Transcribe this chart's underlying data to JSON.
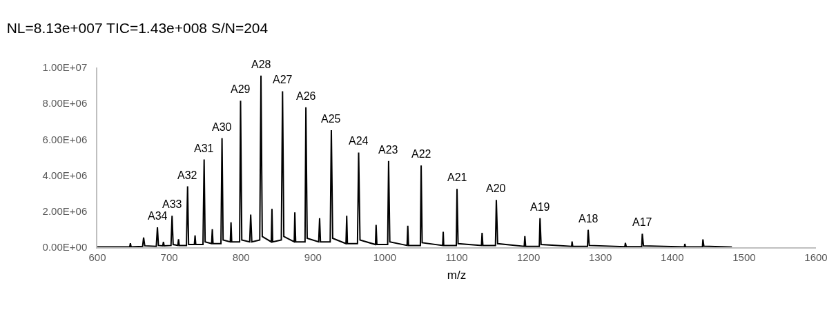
{
  "chart_data": {
    "type": "line",
    "title": "NL=8.13e+007 TIC=1.43e+008 S/N=204",
    "xlabel": "m/z",
    "xlim": [
      600,
      1600
    ],
    "xticks": [
      600,
      700,
      800,
      900,
      1000,
      1100,
      1200,
      1300,
      1400,
      1500,
      1600
    ],
    "ylim": [
      0,
      10000000
    ],
    "yticks": [
      {
        "value": 0,
        "label": "0.00E+00"
      },
      {
        "value": 2000000,
        "label": "2.00E+06"
      },
      {
        "value": 4000000,
        "label": "4.00E+06"
      },
      {
        "value": 6000000,
        "label": "6.00E+06"
      },
      {
        "value": 8000000,
        "label": "8.00E+06"
      },
      {
        "value": 10000000,
        "label": "1.00E+07"
      }
    ],
    "marker": "none",
    "line_style": "solid",
    "series": [
      {
        "color": "#000000",
        "x": [
          600,
          645,
          646,
          647,
          663,
          664.4,
          666,
          682,
          683.6,
          685,
          691,
          692,
          693,
          702.5,
          704,
          705.5,
          712,
          713,
          714,
          724,
          725.6,
          727,
          735,
          736,
          737,
          747,
          748.6,
          750,
          759,
          760,
          761,
          772,
          773.5,
          775,
          785,
          786,
          787,
          798,
          799.3,
          801,
          812,
          813.4,
          815,
          826,
          827.7,
          829.5,
          842,
          843,
          844,
          856,
          857.7,
          859.5,
          874,
          874.8,
          876,
          889,
          890.2,
          892,
          908,
          909.3,
          910.5,
          924,
          925.6,
          927.5,
          946,
          947,
          948,
          962,
          963.6,
          965.5,
          987,
          987.9,
          989,
          1004,
          1005.3,
          1007,
          1031,
          1032,
          1033,
          1049.5,
          1050.6,
          1052,
          1080.5,
          1081.3,
          1082,
          1099.5,
          1100.5,
          1102,
          1134.5,
          1135.4,
          1136.5,
          1154,
          1155.2,
          1157,
          1194,
          1194.9,
          1196,
          1215,
          1216,
          1217.5,
          1260,
          1260.6,
          1261.5,
          1282,
          1283,
          1284.5,
          1334,
          1334.8,
          1336,
          1357.5,
          1358.3,
          1360,
          1417,
          1417.5,
          1418.5,
          1442,
          1442.7,
          1444,
          1483
        ],
        "values": [
          20000,
          20000,
          220000,
          20000,
          50000,
          540000,
          80000,
          50000,
          1110000,
          100000,
          80000,
          300000,
          80000,
          100000,
          1750000,
          150000,
          100000,
          450000,
          100000,
          100000,
          3390000,
          150000,
          150000,
          660000,
          150000,
          150000,
          4880000,
          300000,
          200000,
          1000000,
          200000,
          200000,
          6070000,
          400000,
          300000,
          1390000,
          300000,
          300000,
          8150000,
          400000,
          300000,
          1820000,
          300000,
          400000,
          9550000,
          600000,
          300000,
          2140000,
          300000,
          400000,
          8680000,
          600000,
          300000,
          1940000,
          300000,
          300000,
          7790000,
          500000,
          300000,
          1620000,
          300000,
          300000,
          6510000,
          500000,
          200000,
          1750000,
          200000,
          200000,
          5270000,
          400000,
          150000,
          1240000,
          150000,
          150000,
          4800000,
          300000,
          100000,
          1200000,
          100000,
          100000,
          4550000,
          250000,
          100000,
          860000,
          100000,
          100000,
          3250000,
          200000,
          100000,
          800000,
          100000,
          100000,
          2630000,
          200000,
          50000,
          620000,
          50000,
          50000,
          1620000,
          150000,
          50000,
          320000,
          50000,
          50000,
          970000,
          100000,
          30000,
          240000,
          30000,
          30000,
          750000,
          80000,
          20000,
          190000,
          20000,
          20000,
          440000,
          60000,
          10000
        ]
      }
    ],
    "annotations": [
      {
        "text": "A34",
        "x": 683.6,
        "y": 1110000
      },
      {
        "text": "A33",
        "x": 704,
        "y": 1750000
      },
      {
        "text": "A32",
        "x": 725.6,
        "y": 3390000
      },
      {
        "text": "A31",
        "x": 748.6,
        "y": 4880000
      },
      {
        "text": "A30",
        "x": 773.5,
        "y": 6070000
      },
      {
        "text": "A29",
        "x": 799.3,
        "y": 8150000
      },
      {
        "text": "A28",
        "x": 827.7,
        "y": 9550000
      },
      {
        "text": "A27",
        "x": 857.7,
        "y": 8680000
      },
      {
        "text": "A26",
        "x": 890.2,
        "y": 7790000
      },
      {
        "text": "A25",
        "x": 925.6,
        "y": 6510000
      },
      {
        "text": "A24",
        "x": 963.6,
        "y": 5270000
      },
      {
        "text": "A23",
        "x": 1005.3,
        "y": 4800000
      },
      {
        "text": "A22",
        "x": 1050.6,
        "y": 4550000
      },
      {
        "text": "A21",
        "x": 1100.5,
        "y": 3250000
      },
      {
        "text": "A20",
        "x": 1155.2,
        "y": 2630000
      },
      {
        "text": "A19",
        "x": 1216,
        "y": 1620000
      },
      {
        "text": "A18",
        "x": 1283,
        "y": 970000
      },
      {
        "text": "A17",
        "x": 1358.3,
        "y": 750000
      }
    ]
  }
}
